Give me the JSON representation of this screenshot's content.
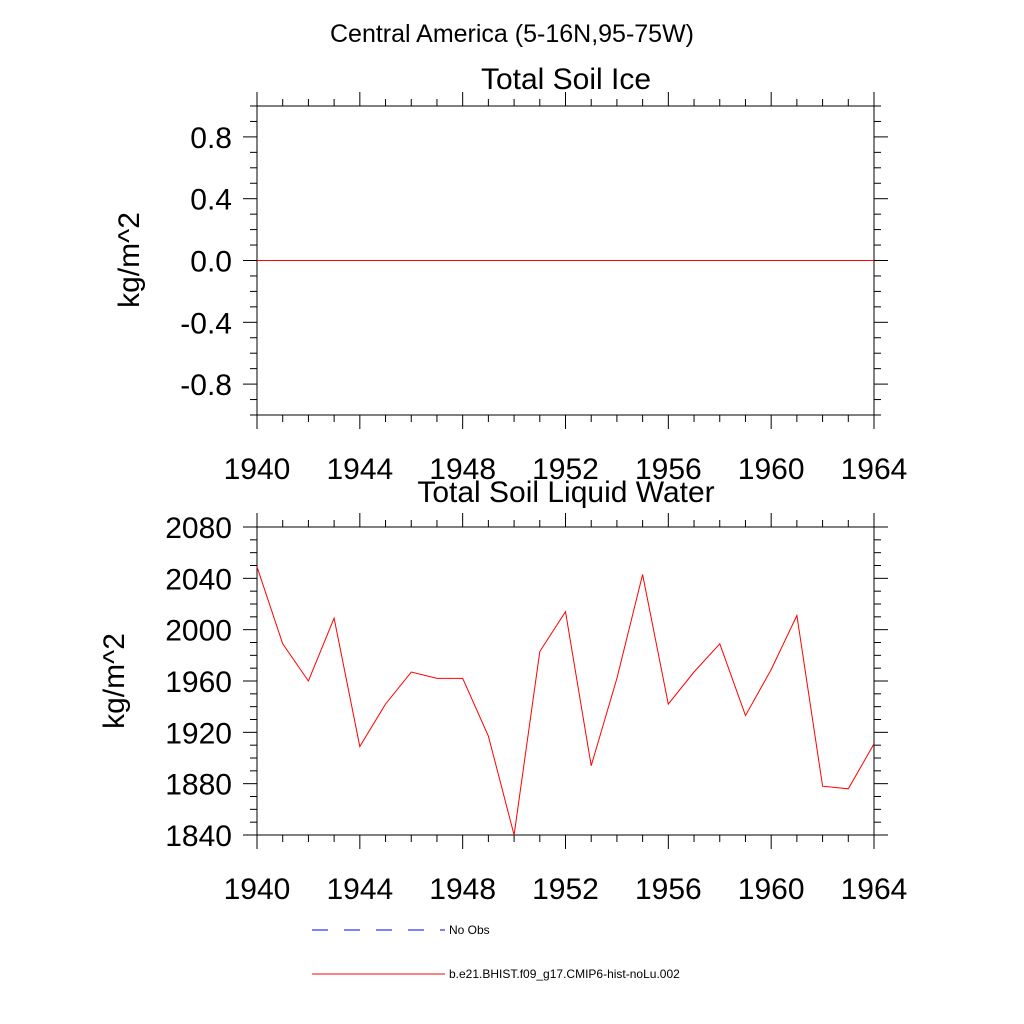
{
  "figure": {
    "title": "Central America (5-16N,95-75W)"
  },
  "chart_data": [
    {
      "type": "line",
      "title": "Total Soil Ice",
      "xlabel": "",
      "ylabel": "kg/m^2",
      "xlim": [
        1940,
        1964
      ],
      "ylim": [
        -1.0,
        1.0
      ],
      "xticks": [
        1940,
        1944,
        1948,
        1952,
        1956,
        1960,
        1964
      ],
      "xtick_labels": [
        "1940",
        "1944",
        "1948",
        "1952",
        "1956",
        "1960",
        "1964"
      ],
      "yticks": [
        0.8,
        0.4,
        0.0,
        -0.4,
        -0.8
      ],
      "ytick_labels": [
        "0.8",
        "0.4",
        "0.0",
        "-0.4",
        "-0.8"
      ],
      "grid": false,
      "series": [
        {
          "name": "b.e21.BHIST.f09_g17.CMIP6-hist-noLu.002",
          "color": "#ff0000",
          "x": [
            1940,
            1941,
            1942,
            1943,
            1944,
            1945,
            1946,
            1947,
            1948,
            1949,
            1950,
            1951,
            1952,
            1953,
            1954,
            1955,
            1956,
            1957,
            1958,
            1959,
            1960,
            1961,
            1962,
            1963,
            1964
          ],
          "y": [
            0,
            0,
            0,
            0,
            0,
            0,
            0,
            0,
            0,
            0,
            0,
            0,
            0,
            0,
            0,
            0,
            0,
            0,
            0,
            0,
            0,
            0,
            0,
            0,
            0
          ]
        }
      ]
    },
    {
      "type": "line",
      "title": "Total Soil Liquid Water",
      "xlabel": "",
      "ylabel": "kg/m^2",
      "xlim": [
        1940,
        1964
      ],
      "ylim": [
        1840,
        2080
      ],
      "xticks": [
        1940,
        1944,
        1948,
        1952,
        1956,
        1960,
        1964
      ],
      "xtick_labels": [
        "1940",
        "1944",
        "1948",
        "1952",
        "1956",
        "1960",
        "1964"
      ],
      "yticks": [
        2080,
        2040,
        2000,
        1960,
        1920,
        1880,
        1840
      ],
      "ytick_labels": [
        "2080",
        "2040",
        "2000",
        "1960",
        "1920",
        "1880",
        "1840"
      ],
      "grid": false,
      "series": [
        {
          "name": "b.e21.BHIST.f09_g17.CMIP6-hist-noLu.002",
          "color": "#ff0000",
          "x": [
            1940,
            1941,
            1942,
            1943,
            1944,
            1945,
            1946,
            1947,
            1948,
            1949,
            1950,
            1951,
            1952,
            1953,
            1954,
            1955,
            1956,
            1957,
            1958,
            1959,
            1960,
            1961,
            1962,
            1963,
            1964
          ],
          "y": [
            2049,
            1989,
            1960,
            2009,
            1909,
            1942,
            1967,
            1962,
            1962,
            1917,
            1840,
            1983,
            2014,
            1894,
            1962,
            2043,
            1942,
            1967,
            1989,
            1933,
            1969,
            2011,
            1878,
            1876,
            1911
          ]
        }
      ]
    }
  ],
  "legend": {
    "placement": "bottom",
    "entries": [
      {
        "label": "No Obs",
        "color": "#0000ff",
        "style": "dashed"
      },
      {
        "label": "b.e21.BHIST.f09_g17.CMIP6-hist-noLu.002",
        "color": "#ff0000",
        "style": "solid"
      }
    ]
  }
}
